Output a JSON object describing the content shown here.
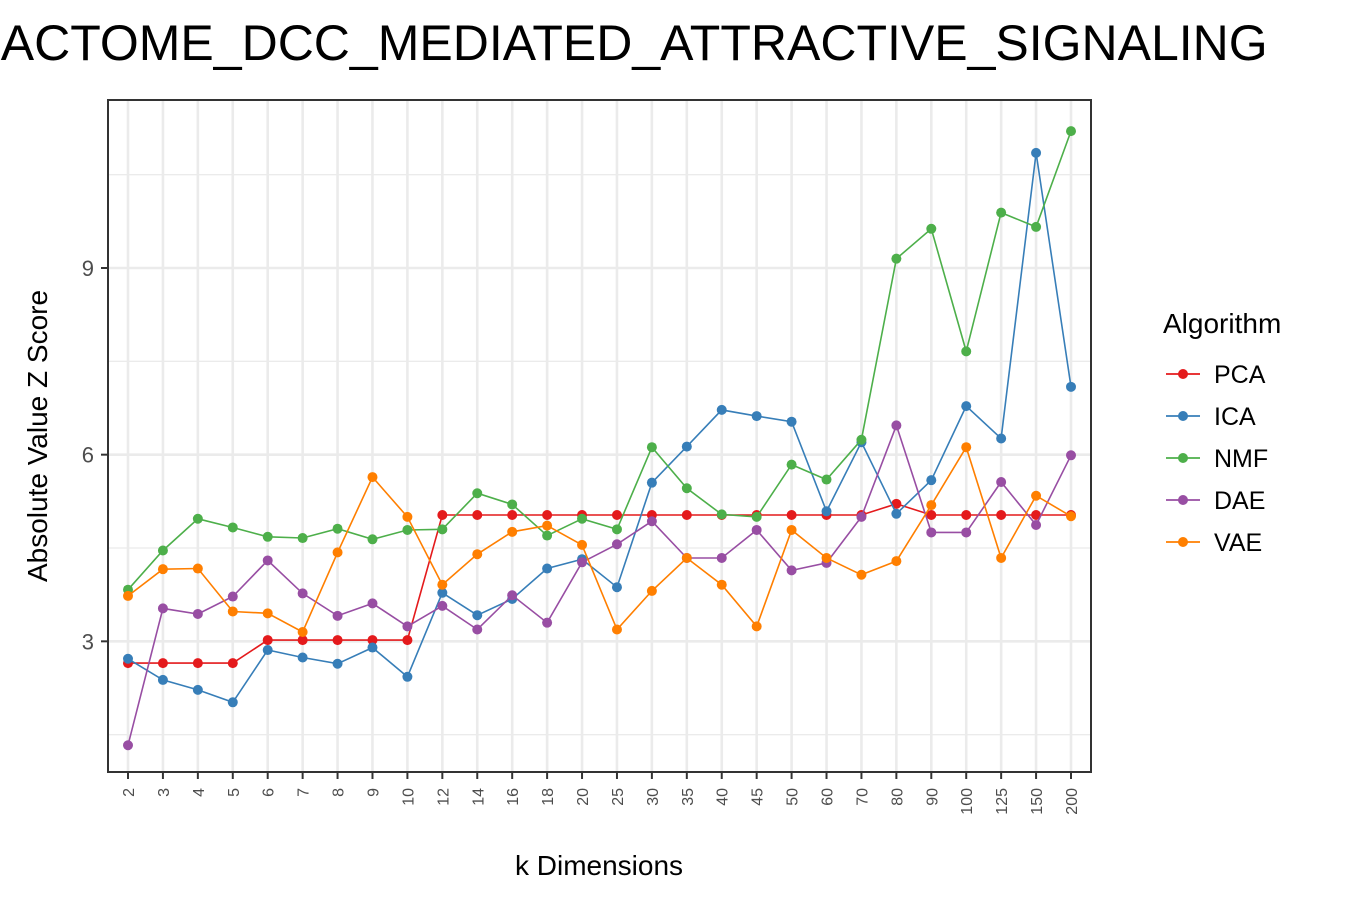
{
  "chart_data": {
    "type": "line",
    "title": "REACTOME_DCC_MEDIATED_ATTRACTIVE_SIGNALING",
    "xlabel": "k Dimensions",
    "ylabel": "Absolute Value Z Score",
    "x": [
      "2",
      "3",
      "4",
      "5",
      "6",
      "7",
      "8",
      "9",
      "10",
      "12",
      "14",
      "16",
      "18",
      "20",
      "25",
      "30",
      "35",
      "40",
      "45",
      "50",
      "60",
      "70",
      "80",
      "90",
      "100",
      "125",
      "150",
      "200"
    ],
    "ylim": [
      0.9,
      11.7
    ],
    "yticks": [
      "3",
      "6",
      "9"
    ],
    "legend_title": "Algorithm",
    "legend_position": "right",
    "grid": true,
    "series": [
      {
        "name": "PCA",
        "color": "#e41a1c",
        "values": [
          2.65,
          2.65,
          2.65,
          2.65,
          3.02,
          3.02,
          3.02,
          3.02,
          3.02,
          5.03,
          5.03,
          5.03,
          5.03,
          5.03,
          5.03,
          5.03,
          5.03,
          5.03,
          5.03,
          5.03,
          5.03,
          5.03,
          5.21,
          5.03,
          5.03,
          5.03,
          5.03,
          5.03
        ]
      },
      {
        "name": "ICA",
        "color": "#377eb8",
        "values": [
          2.72,
          2.38,
          2.22,
          2.02,
          2.86,
          2.74,
          2.64,
          2.9,
          2.43,
          3.78,
          3.42,
          3.68,
          4.17,
          4.32,
          3.87,
          5.55,
          6.13,
          6.72,
          6.62,
          6.53,
          5.09,
          6.2,
          5.05,
          5.59,
          6.78,
          6.26,
          10.85,
          7.09
        ]
      },
      {
        "name": "NMF",
        "color": "#4daf4a",
        "values": [
          3.83,
          4.46,
          4.97,
          4.83,
          4.68,
          4.66,
          4.81,
          4.64,
          4.79,
          4.8,
          5.38,
          5.2,
          4.7,
          4.97,
          4.8,
          6.12,
          5.46,
          5.04,
          5.0,
          5.84,
          5.6,
          6.24,
          9.15,
          9.63,
          7.66,
          9.89,
          9.66,
          11.2
        ]
      },
      {
        "name": "DAE",
        "color": "#984ea3",
        "values": [
          1.33,
          3.53,
          3.44,
          3.72,
          4.3,
          3.77,
          3.41,
          3.61,
          3.24,
          3.57,
          3.19,
          3.74,
          3.3,
          4.27,
          4.56,
          4.93,
          4.34,
          4.34,
          4.79,
          4.14,
          4.26,
          5.0,
          6.47,
          4.75,
          4.75,
          5.56,
          4.87,
          5.99
        ]
      },
      {
        "name": "VAE",
        "color": "#ff7f00",
        "values": [
          3.73,
          4.16,
          4.17,
          3.48,
          3.45,
          3.15,
          4.43,
          5.64,
          5.0,
          3.91,
          4.4,
          4.76,
          4.86,
          4.55,
          3.19,
          3.81,
          4.34,
          3.91,
          3.24,
          4.79,
          4.34,
          4.07,
          4.29,
          5.19,
          6.12,
          4.34,
          5.34,
          5.01
        ]
      }
    ]
  }
}
